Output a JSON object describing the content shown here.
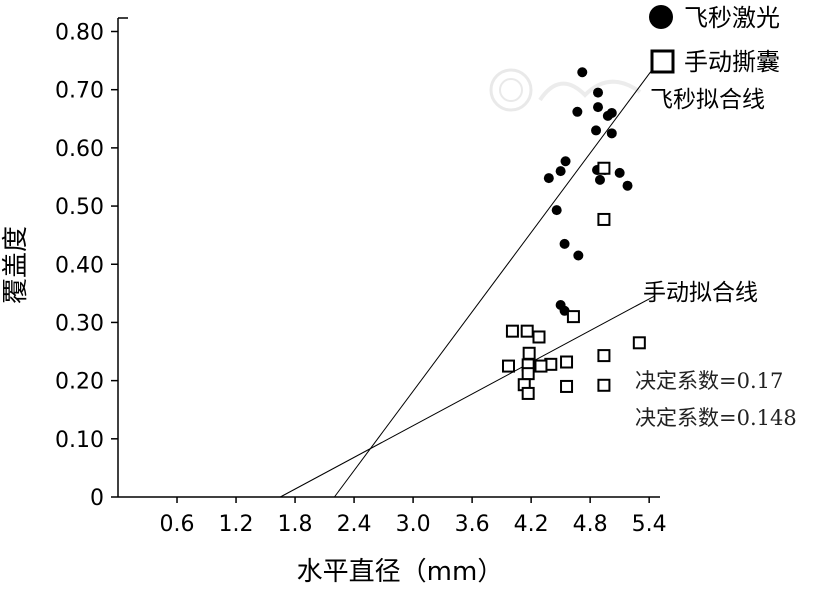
{
  "chart_data": {
    "type": "scatter",
    "xlabel": "水平直径（mm）",
    "ylabel": "覆盖度",
    "xlim": [
      0,
      5.5
    ],
    "ylim": [
      0,
      0.82
    ],
    "x_ticks": [
      "0.6",
      "1.2",
      "1.8",
      "2.4",
      "3.0",
      "3.6",
      "4.2",
      "4.8",
      "5.4"
    ],
    "x_tick_values": [
      0.6,
      1.2,
      1.8,
      2.4,
      3.0,
      3.6,
      4.2,
      4.8,
      5.4
    ],
    "y_ticks": [
      "0",
      "0.10",
      "0.20",
      "0.30",
      "0.40",
      "0.50",
      "0.60",
      "0.70",
      "0.80"
    ],
    "y_tick_values": [
      0,
      0.1,
      0.2,
      0.3,
      0.4,
      0.5,
      0.6,
      0.7,
      0.8
    ],
    "grid": false,
    "legend": "top-right",
    "series": [
      {
        "name": "飞秒激光",
        "marker": "filled-circle",
        "color": "#000000",
        "points": [
          [
            4.72,
            0.73
          ],
          [
            4.88,
            0.695
          ],
          [
            4.67,
            0.662
          ],
          [
            4.88,
            0.67
          ],
          [
            5.02,
            0.66
          ],
          [
            4.98,
            0.655
          ],
          [
            4.86,
            0.63
          ],
          [
            5.02,
            0.625
          ],
          [
            4.55,
            0.577
          ],
          [
            4.5,
            0.56
          ],
          [
            4.87,
            0.562
          ],
          [
            4.95,
            0.562
          ],
          [
            5.1,
            0.557
          ],
          [
            4.38,
            0.548
          ],
          [
            4.9,
            0.545
          ],
          [
            5.18,
            0.535
          ],
          [
            4.46,
            0.493
          ],
          [
            4.54,
            0.435
          ],
          [
            4.68,
            0.415
          ],
          [
            4.5,
            0.33
          ],
          [
            4.54,
            0.32
          ]
        ]
      },
      {
        "name": "手动撕囊",
        "marker": "open-square",
        "color": "#000000",
        "points": [
          [
            4.94,
            0.565
          ],
          [
            4.94,
            0.477
          ],
          [
            4.63,
            0.31
          ],
          [
            4.01,
            0.285
          ],
          [
            4.16,
            0.285
          ],
          [
            4.28,
            0.275
          ],
          [
            5.3,
            0.265
          ],
          [
            4.18,
            0.247
          ],
          [
            4.94,
            0.243
          ],
          [
            4.56,
            0.232
          ],
          [
            4.4,
            0.228
          ],
          [
            4.17,
            0.227
          ],
          [
            4.3,
            0.225
          ],
          [
            3.97,
            0.225
          ],
          [
            4.17,
            0.212
          ],
          [
            4.13,
            0.193
          ],
          [
            4.56,
            0.19
          ],
          [
            4.94,
            0.192
          ],
          [
            4.17,
            0.178
          ]
        ]
      }
    ],
    "fit_lines": [
      {
        "name": "飞秒拟合线",
        "x": [
          2.2,
          5.5
        ],
        "y": [
          0,
          0.75
        ]
      },
      {
        "name": "手动拟合线",
        "x": [
          1.65,
          5.45
        ],
        "y": [
          0,
          0.345
        ]
      }
    ],
    "annotations": [
      "决定系数=0.17",
      "决定系数=0.148"
    ]
  }
}
